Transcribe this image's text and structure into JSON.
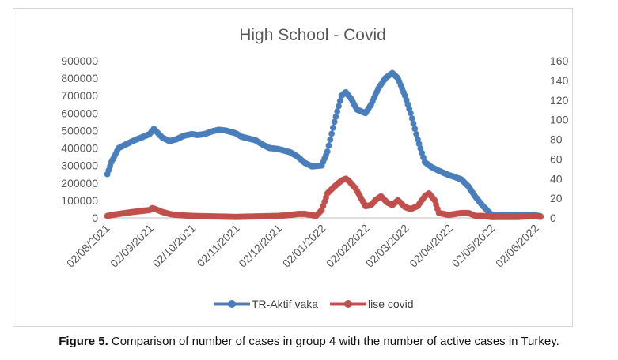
{
  "chart_data": {
    "type": "line",
    "title": "High School - Covid",
    "x_tick_labels": [
      "02/08/2021",
      "02/09/2021",
      "02/10/2021",
      "02/11/2021",
      "02/12/2021",
      "02/01/2022",
      "02/02/2022",
      "02/03/2022",
      "02/04/2022",
      "02/05/2022",
      "02/06/2022"
    ],
    "y_left": {
      "range": [
        0,
        900000
      ],
      "ticks": [
        "0",
        "100000",
        "200000",
        "300000",
        "400000",
        "500000",
        "600000",
        "700000",
        "800000",
        "900000"
      ]
    },
    "y_right": {
      "range": [
        0,
        160
      ],
      "ticks": [
        "0",
        "20",
        "40",
        "60",
        "80",
        "100",
        "120",
        "140",
        "160"
      ]
    },
    "legend_position": "bottom",
    "series": [
      {
        "name": "TR-Aktif vaka",
        "axis": "left",
        "color": "#4a7ebb",
        "x": [
          "2021-08-02",
          "2021-08-05",
          "2021-08-10",
          "2021-08-20",
          "2021-09-01",
          "2021-09-04",
          "2021-09-10",
          "2021-09-15",
          "2021-09-20",
          "2021-09-25",
          "2021-10-01",
          "2021-10-05",
          "2021-10-10",
          "2021-10-15",
          "2021-10-20",
          "2021-10-25",
          "2021-11-01",
          "2021-11-05",
          "2021-11-10",
          "2021-11-15",
          "2021-11-20",
          "2021-11-25",
          "2021-12-01",
          "2021-12-10",
          "2021-12-15",
          "2021-12-20",
          "2021-12-25",
          "2022-01-01",
          "2022-01-05",
          "2022-01-10",
          "2022-01-15",
          "2022-01-18",
          "2022-01-22",
          "2022-01-26",
          "2022-02-01",
          "2022-02-05",
          "2022-02-10",
          "2022-02-15",
          "2022-02-20",
          "2022-02-24",
          "2022-03-01",
          "2022-03-05",
          "2022-03-10",
          "2022-03-15",
          "2022-03-20",
          "2022-03-25",
          "2022-04-01",
          "2022-04-05",
          "2022-04-10",
          "2022-04-15",
          "2022-04-20",
          "2022-04-25",
          "2022-05-01",
          "2022-05-05",
          "2022-05-10",
          "2022-05-20",
          "2022-06-01",
          "2022-06-05"
        ],
        "y": [
          250000,
          320000,
          400000,
          440000,
          480000,
          510000,
          460000,
          440000,
          450000,
          470000,
          480000,
          475000,
          480000,
          495000,
          505000,
          500000,
          485000,
          465000,
          455000,
          445000,
          420000,
          400000,
          395000,
          375000,
          350000,
          315000,
          295000,
          300000,
          380000,
          550000,
          700000,
          720000,
          680000,
          620000,
          600000,
          650000,
          740000,
          800000,
          830000,
          800000,
          700000,
          600000,
          450000,
          320000,
          290000,
          270000,
          245000,
          235000,
          220000,
          180000,
          120000,
          70000,
          20000,
          15000,
          15000,
          15000,
          15000,
          10000
        ]
      },
      {
        "name": "lise covid",
        "axis": "right",
        "color": "#c0504d",
        "x": [
          "2021-08-02",
          "2021-08-10",
          "2021-08-20",
          "2021-09-01",
          "2021-09-03",
          "2021-09-05",
          "2021-09-10",
          "2021-09-15",
          "2021-09-20",
          "2021-10-01",
          "2021-11-01",
          "2021-12-01",
          "2021-12-10",
          "2021-12-15",
          "2021-12-20",
          "2021-12-28",
          "2022-01-01",
          "2022-01-05",
          "2022-01-10",
          "2022-01-15",
          "2022-01-18",
          "2022-01-20",
          "2022-01-25",
          "2022-02-01",
          "2022-02-05",
          "2022-02-08",
          "2022-02-12",
          "2022-02-16",
          "2022-02-20",
          "2022-02-24",
          "2022-03-01",
          "2022-03-05",
          "2022-03-10",
          "2022-03-15",
          "2022-03-18",
          "2022-03-22",
          "2022-03-25",
          "2022-04-01",
          "2022-04-10",
          "2022-04-15",
          "2022-04-20",
          "2022-04-25",
          "2022-05-01",
          "2022-05-10",
          "2022-05-20",
          "2022-06-01",
          "2022-06-05"
        ],
        "y": [
          2,
          4,
          6,
          8,
          10,
          9,
          6,
          4,
          3,
          2,
          1,
          2,
          3,
          4,
          4,
          2,
          8,
          25,
          32,
          38,
          40,
          38,
          30,
          12,
          13,
          18,
          22,
          16,
          13,
          18,
          11,
          9,
          12,
          22,
          25,
          18,
          5,
          3,
          5,
          5,
          2,
          2,
          1,
          1,
          1,
          2,
          1
        ]
      }
    ]
  },
  "caption": {
    "label": "Figure 5.",
    "text": " Comparison of number of cases in group 4 with the number of active cases in Turkey."
  }
}
